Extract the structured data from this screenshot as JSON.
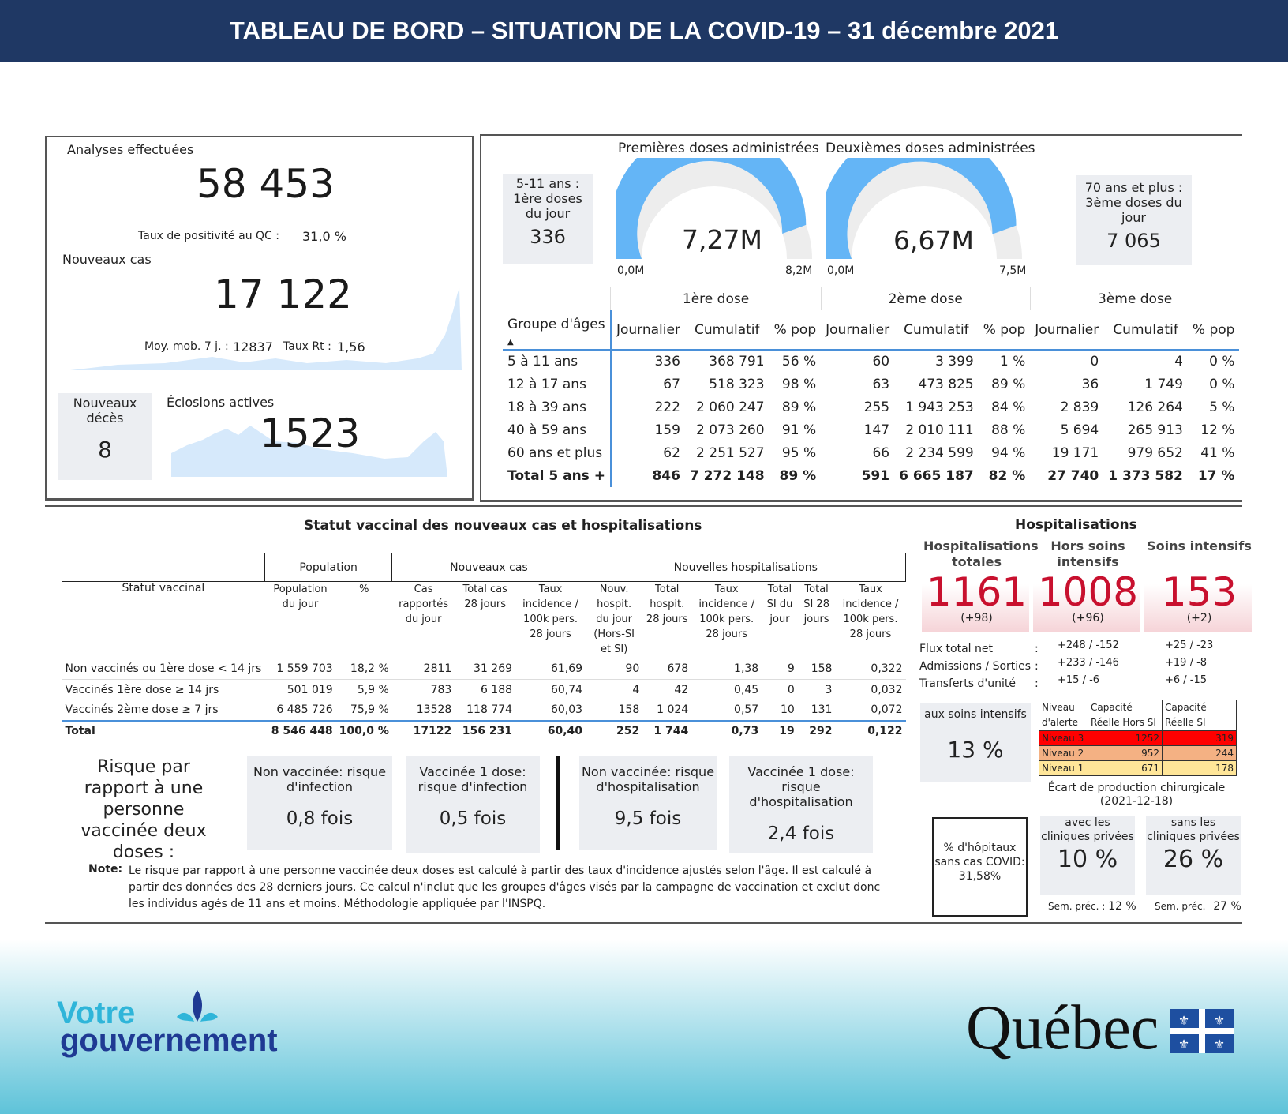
{
  "header": {
    "title": "TABLEAU DE BORD – SITUATION DE LA COVID-19 – 31 décembre 2021"
  },
  "tests": {
    "label": "Analyses effectuées",
    "value": "58 453",
    "positivity_label": "Taux de positivité au QC :",
    "positivity_value": "31,0 %"
  },
  "cases": {
    "label": "Nouveaux cas",
    "value": "17 122",
    "mm_label": "Moy. mob. 7 j. :",
    "mm_value": "12837",
    "rt_label": "Taux Rt :",
    "rt_value": "1,56"
  },
  "deaths": {
    "label": "Nouveaux décès",
    "value": "8"
  },
  "outbreaks": {
    "label": "Éclosions actives",
    "value": "1523"
  },
  "kids_doses": {
    "label": "5-11 ans : 1ère doses du jour",
    "value": "336"
  },
  "elder_doses": {
    "label": "70 ans et plus : 3ème doses du jour",
    "value": "7 065"
  },
  "gauge1": {
    "title": "Premières doses administrées",
    "value": "7,27M",
    "min": "0,0M",
    "max": "8,2M",
    "fraction": 0.887
  },
  "gauge2": {
    "title": "Deuxièmes doses administrées",
    "value": "6,67M",
    "min": "0,0M",
    "max": "7,5M",
    "fraction": 0.889
  },
  "colors": {
    "header_bg": "#1f3864",
    "gauge": "#64b5f6",
    "hosp_red": "#c8102e",
    "level3": "#ff0000",
    "level2": "#f4b183",
    "level1": "#ffe699"
  },
  "vax_table": {
    "groups": [
      "1ère dose",
      "2ème dose",
      "3ème dose"
    ],
    "age_header": "Groupe d'âges",
    "subheaders": [
      "Journalier",
      "Cumulatif",
      "% pop",
      "Journalier",
      "Cumulatif",
      "% pop",
      "Journalier",
      "Cumulatif",
      "% pop"
    ],
    "rows": [
      [
        "5 à 11 ans",
        "336",
        "368 791",
        "56 %",
        "60",
        "3 399",
        "1 %",
        "0",
        "4",
        "0 %"
      ],
      [
        "12 à 17 ans",
        "67",
        "518 323",
        "98 %",
        "63",
        "473 825",
        "89 %",
        "36",
        "1 749",
        "0 %"
      ],
      [
        "18 à 39 ans",
        "222",
        "2 060 247",
        "89 %",
        "255",
        "1 943 253",
        "84 %",
        "2 839",
        "126 264",
        "5 %"
      ],
      [
        "40 à 59 ans",
        "159",
        "2 073 260",
        "91 %",
        "147",
        "2 010 111",
        "88 %",
        "5 694",
        "265 913",
        "12 %"
      ],
      [
        "60 ans et plus",
        "62",
        "2 251 527",
        "95 %",
        "66",
        "2 234 599",
        "94 %",
        "19 171",
        "979 652",
        "41 %"
      ]
    ],
    "total": [
      "Total 5 ans +",
      "846",
      "7 272 148",
      "89 %",
      "591",
      "6 665 187",
      "82 %",
      "27 740",
      "1 373 582",
      "17 %"
    ]
  },
  "status": {
    "title": "Statut vaccinal des nouveaux cas et hospitalisations",
    "groups": [
      "Population",
      "Nouveaux cas",
      "Nouvelles hospitalisations"
    ],
    "col_header": "Statut vaccinal",
    "subheaders": [
      "Population du jour",
      "%",
      "Cas rapportés du jour",
      "Total cas 28 jours",
      "Taux incidence / 100k pers. 28 jours",
      "Nouv. hospit. du jour (Hors-SI et SI)",
      "Total hospit. 28 jours",
      "Taux incidence / 100k pers. 28 jours",
      "Total SI du jour",
      "Total SI 28 jours",
      "Taux incidence / 100k pers. 28 jours"
    ],
    "rows": [
      [
        "Non vaccinés ou 1ère dose < 14 jrs",
        "1 559 703",
        "18,2 %",
        "2811",
        "31 269",
        "61,69",
        "90",
        "678",
        "1,38",
        "9",
        "158",
        "0,322"
      ],
      [
        "Vaccinés 1ère dose ≥ 14 jrs",
        "501 019",
        "5,9 %",
        "783",
        "6 188",
        "60,74",
        "4",
        "42",
        "0,45",
        "0",
        "3",
        "0,032"
      ],
      [
        "Vaccinés 2ème dose ≥ 7 jrs",
        "6 485 726",
        "75,9 %",
        "13528",
        "118 774",
        "60,03",
        "158",
        "1 024",
        "0,57",
        "10",
        "131",
        "0,072"
      ]
    ],
    "total": [
      "Total",
      "8 546 448",
      "100,0 %",
      "17122",
      "156 231",
      "60,40",
      "252",
      "1 744",
      "0,73",
      "19",
      "292",
      "0,122"
    ]
  },
  "risk": {
    "intro": "Risque par rapport à une personne vaccinée deux doses :",
    "boxes": [
      {
        "title": "Non vaccinée: risque d'infection",
        "value": "0,8 fois"
      },
      {
        "title": "Vaccinée 1 dose: risque d'infection",
        "value": "0,5 fois"
      },
      {
        "title": "Non vaccinée: risque d'hospitalisation",
        "value": "9,5 fois"
      },
      {
        "title": "Vaccinée 1 dose: risque d'hospitalisation",
        "value": "2,4 fois"
      }
    ],
    "note_label": "Note:",
    "note": "Le risque par rapport à une personne vaccinée deux doses est calculé à partir des taux d'incidence ajustés selon l'âge. Il est calculé à partir des données des 28 derniers jours. Ce calcul n'inclut que les groupes d'âges visés par la campagne de vaccination et exclut donc les individus agés de 11 ans et moins. Méthodologie appliquée par l'INSPQ."
  },
  "hosp": {
    "title": "Hospitalisations",
    "cols": [
      {
        "label": "Hospitalisations totales",
        "value": "1161",
        "delta": "(+98)"
      },
      {
        "label": "Hors soins intensifs",
        "value": "1008",
        "delta": "(+96)"
      },
      {
        "label": "Soins intensifs",
        "value": "153",
        "delta": "(+2)"
      }
    ],
    "flux": [
      {
        "label": "Flux total net",
        "hors": "+248 / -152",
        "si": "+25 / -23"
      },
      {
        "label": "Admissions / Sorties",
        "hors": "+233 / -146",
        "si": "+19 / -8"
      },
      {
        "label": "Transferts d'unité",
        "hors": "+15 / -6",
        "si": "+6 / -15"
      }
    ],
    "icu_label": "aux soins intensifs",
    "icu_value": "13 %",
    "levels_header": [
      "Niveau d'alerte",
      "Capacité Réelle Hors SI",
      "Capacité Réelle SI"
    ],
    "levels": [
      [
        "Niveau 3",
        "1252",
        "319"
      ],
      [
        "Niveau 2",
        "952",
        "244"
      ],
      [
        "Niveau 1",
        "671",
        "178"
      ]
    ],
    "surgery_label": "Écart de production chirurgicale (2021-12-18)",
    "nocovid_label": "% d'hôpitaux sans cas COVID:",
    "nocovid_value": "31,58%",
    "with_private": {
      "label": "avec les cliniques privées",
      "value": "10 %",
      "prev_label": "Sem. préc. :",
      "prev_value": "12 %"
    },
    "without_private": {
      "label": "sans les cliniques privées",
      "value": "26 %",
      "prev_label": "Sem. préc.",
      "prev_value": "27 %"
    }
  },
  "footer": {
    "brand1": "Votre",
    "brand2": "gouvernement",
    "brand3": "Québec"
  }
}
